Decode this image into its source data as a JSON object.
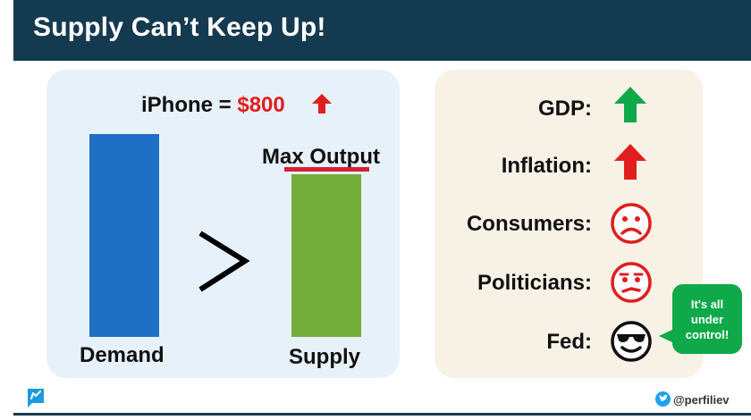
{
  "title": "Supply Can’t Keep Up!",
  "price": {
    "prefix": "iPhone = ",
    "value": "$800",
    "arrow_icon": "up-arrow-icon",
    "arrow_color": "#e01e1e"
  },
  "bars": {
    "demand_label": "Demand",
    "supply_label": "Supply",
    "max_label": "Max Output",
    "comparison": ">",
    "demand_color": "#1f6fc4",
    "supply_color": "#75ad3a",
    "max_line_color": "#d61f39"
  },
  "indicators": [
    {
      "label": "GDP:",
      "icon": "green-up-arrow-icon"
    },
    {
      "label": "Inflation:",
      "icon": "red-up-arrow-icon"
    },
    {
      "label": "Consumers:",
      "icon": "sad-face-icon"
    },
    {
      "label": "Politicians:",
      "icon": "worried-face-icon"
    },
    {
      "label": "Fed:",
      "icon": "sunglasses-face-icon"
    }
  ],
  "fed_bubble": {
    "line1": "It's all",
    "line2": "under",
    "line3": "control!"
  },
  "footer": {
    "handle": "@perfiliev",
    "handle_icon": "twitter-icon",
    "logo_icon": "chat-flag-logo-icon"
  },
  "colors": {
    "header_bg": "#143a50",
    "left_panel": "#e7f1fa",
    "right_panel": "#f7f1e6",
    "green": "#0fa94a",
    "red": "#e01e1e"
  }
}
